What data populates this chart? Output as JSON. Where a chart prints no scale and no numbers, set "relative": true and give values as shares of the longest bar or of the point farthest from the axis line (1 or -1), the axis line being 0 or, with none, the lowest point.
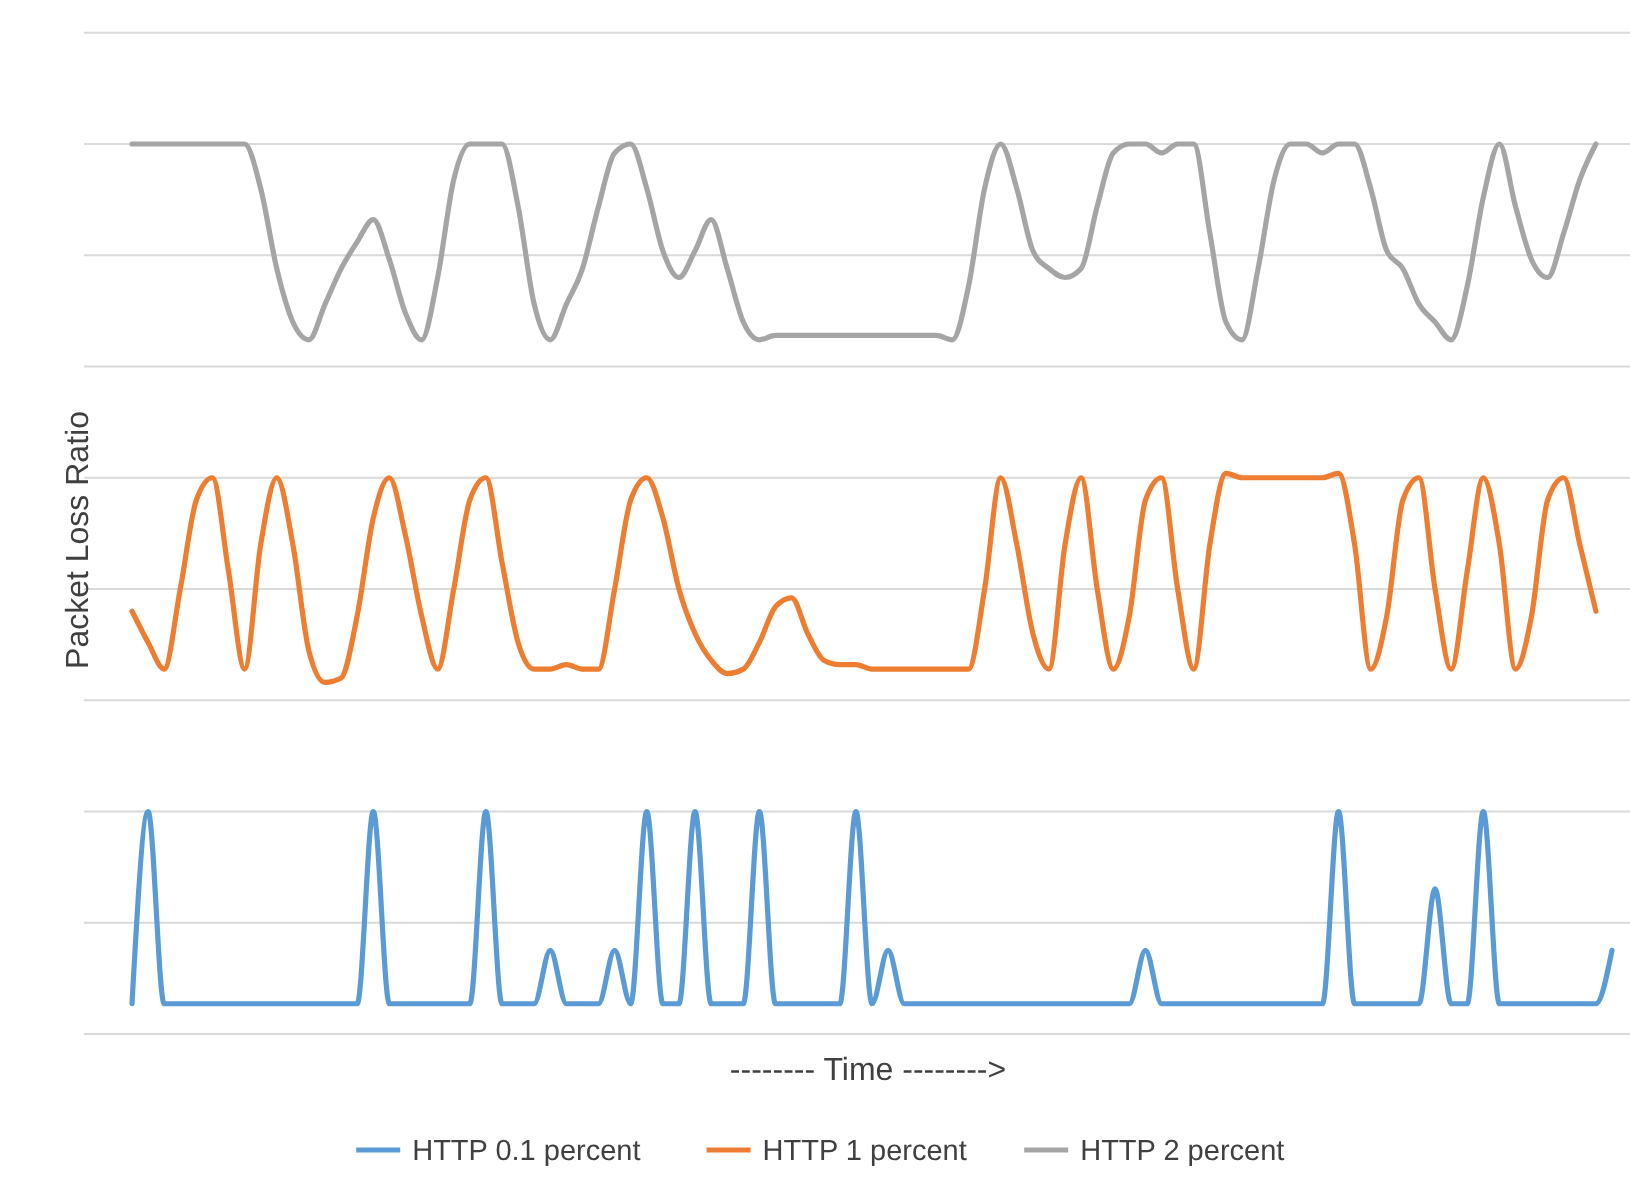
{
  "chart_data": {
    "type": "line",
    "relative": true,
    "xlabel": "-------- Time -------->",
    "ylabel": "Packet Loss Ratio",
    "grid": true,
    "legend": "bottom",
    "marker": "none",
    "line_style": "solid",
    "categories": [
      null,
      null,
      null,
      null,
      null,
      null,
      null,
      null,
      null,
      null,
      null,
      null,
      null,
      null,
      null,
      null,
      null,
      null,
      null,
      null,
      null,
      null,
      null,
      null,
      null,
      null,
      null,
      null,
      null,
      null,
      null,
      null,
      null,
      null,
      null,
      null,
      null,
      null,
      null,
      null,
      null,
      null,
      null,
      null,
      null,
      null,
      null,
      null,
      null,
      null,
      null,
      null,
      null,
      null,
      null,
      null,
      null,
      null,
      null,
      null,
      null,
      null,
      null,
      null,
      null,
      null,
      null,
      null,
      null,
      null,
      null,
      null,
      null,
      null,
      null,
      null,
      null,
      null,
      null,
      null,
      null,
      null,
      null,
      null,
      null,
      null,
      null,
      null,
      null,
      null,
      null,
      null,
      null
    ],
    "series": [
      {
        "name": "HTTP 0.1 percent",
        "color": "#5b9bd5",
        "values": [
          0.034,
          0.25,
          0.034,
          0.034,
          0.034,
          0.034,
          0.034,
          0.034,
          0.034,
          0.034,
          0.034,
          0.034,
          0.034,
          0.034,
          0.034,
          0.25,
          0.034,
          0.034,
          0.034,
          0.034,
          0.034,
          0.034,
          0.25,
          0.034,
          0.034,
          0.034,
          0.094,
          0.034,
          0.034,
          0.034,
          0.094,
          0.034,
          0.25,
          0.034,
          0.034,
          0.25,
          0.034,
          0.034,
          0.034,
          0.25,
          0.034,
          0.034,
          0.034,
          0.034,
          0.034,
          0.25,
          0.034,
          0.094,
          0.034,
          0.034,
          0.034,
          0.034,
          0.034,
          0.034,
          0.034,
          0.034,
          0.034,
          0.034,
          0.034,
          0.034,
          0.034,
          0.034,
          0.034,
          0.094,
          0.034,
          0.034,
          0.034,
          0.034,
          0.034,
          0.034,
          0.034,
          0.034,
          0.034,
          0.034,
          0.034,
          0.25,
          0.034,
          0.034,
          0.034,
          0.034,
          0.034,
          0.163,
          0.034,
          0.034,
          0.25,
          0.034,
          0.034,
          0.034,
          0.034,
          0.034,
          0.034,
          0.034,
          0.094
        ]
      },
      {
        "name": "HTTP 1 percent",
        "color": "#ed7d31",
        "values": [
          0.475,
          0.44,
          0.41,
          0.5,
          0.6,
          0.625,
          0.52,
          0.41,
          0.55,
          0.625,
          0.55,
          0.43,
          0.395,
          0.4,
          0.47,
          0.58,
          0.625,
          0.56,
          0.47,
          0.41,
          0.5,
          0.6,
          0.625,
          0.53,
          0.44,
          0.41,
          0.41,
          0.415,
          0.41,
          0.41,
          0.5,
          0.6,
          0.625,
          0.58,
          0.5,
          0.45,
          0.42,
          0.405,
          0.41,
          0.44,
          0.48,
          0.49,
          0.45,
          0.42,
          0.415,
          0.415,
          0.41,
          0.41,
          0.41,
          0.41,
          0.41,
          0.41,
          0.41,
          0.5,
          0.625,
          0.55,
          0.45,
          0.41,
          0.55,
          0.625,
          0.5,
          0.41,
          0.47,
          0.6,
          0.625,
          0.5,
          0.41,
          0.55,
          0.63,
          0.625,
          0.625,
          0.625,
          0.625,
          0.625,
          0.625,
          0.63,
          0.55,
          0.41,
          0.47,
          0.6,
          0.625,
          0.5,
          0.41,
          0.52,
          0.625,
          0.55,
          0.41,
          0.47,
          0.6,
          0.625,
          0.55,
          0.475,
          null
        ]
      },
      {
        "name": "HTTP 2 percent",
        "color": "#a5a5a5",
        "values": [
          1,
          1,
          1,
          1,
          1,
          1,
          1,
          1,
          0.95,
          0.86,
          0.8,
          0.78,
          0.82,
          0.86,
          0.89,
          0.915,
          0.87,
          0.81,
          0.78,
          0.85,
          0.96,
          1,
          1,
          1,
          0.93,
          0.82,
          0.78,
          0.82,
          0.86,
          0.93,
          0.99,
          1,
          0.95,
          0.88,
          0.85,
          0.88,
          0.915,
          0.86,
          0.8,
          0.78,
          0.785,
          0.785,
          0.785,
          0.785,
          0.785,
          0.785,
          0.785,
          0.785,
          0.785,
          0.785,
          0.785,
          0.78,
          0.84,
          0.95,
          1,
          0.95,
          0.88,
          0.86,
          0.85,
          0.86,
          0.93,
          0.99,
          1,
          1,
          0.99,
          1,
          1,
          0.9,
          0.8,
          0.78,
          0.86,
          0.96,
          1,
          1,
          0.99,
          1,
          1,
          0.95,
          0.88,
          0.86,
          0.82,
          0.8,
          0.78,
          0.84,
          0.94,
          1,
          0.93,
          0.87,
          0.85,
          0.9,
          0.96,
          1,
          null
        ]
      }
    ]
  }
}
